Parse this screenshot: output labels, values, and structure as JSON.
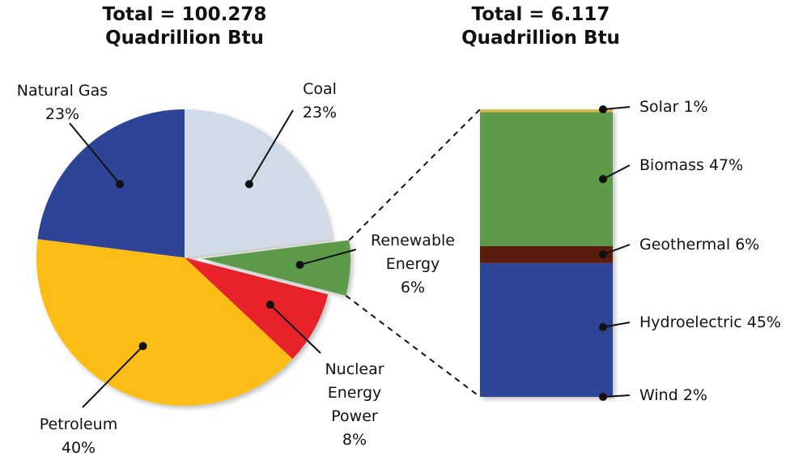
{
  "chart_data": [
    {
      "type": "pie",
      "title": [
        "Total = 100.278",
        "Quadrillion Btu"
      ],
      "categories": [
        "Coal",
        "Renewable Energy",
        "Nuclear Energy Power",
        "Petroleum",
        "Natural Gas"
      ],
      "values": [
        23,
        6,
        8,
        40,
        23
      ],
      "value_labels": [
        "23%",
        "6%",
        "8%",
        "40%",
        "23%"
      ],
      "colors": [
        "#d0dbe7",
        "#5b9a4a",
        "#e8202a",
        "#fbbd13",
        "#2e4597"
      ]
    },
    {
      "type": "stacked_bar",
      "title": [
        "Total = 6.117",
        "Quadrillion Btu"
      ],
      "categories": [
        "Solar",
        "Biomass",
        "Geothermal",
        "Hydroelectric",
        "Wind"
      ],
      "values": [
        1,
        47,
        6,
        45,
        2
      ],
      "value_labels": [
        "1%",
        "47%",
        "6%",
        "45%",
        "2%"
      ],
      "colors": [
        "#d8b84c",
        "#5b9a4a",
        "#5a1a10",
        "#2e4597",
        "#2e4597"
      ]
    }
  ]
}
